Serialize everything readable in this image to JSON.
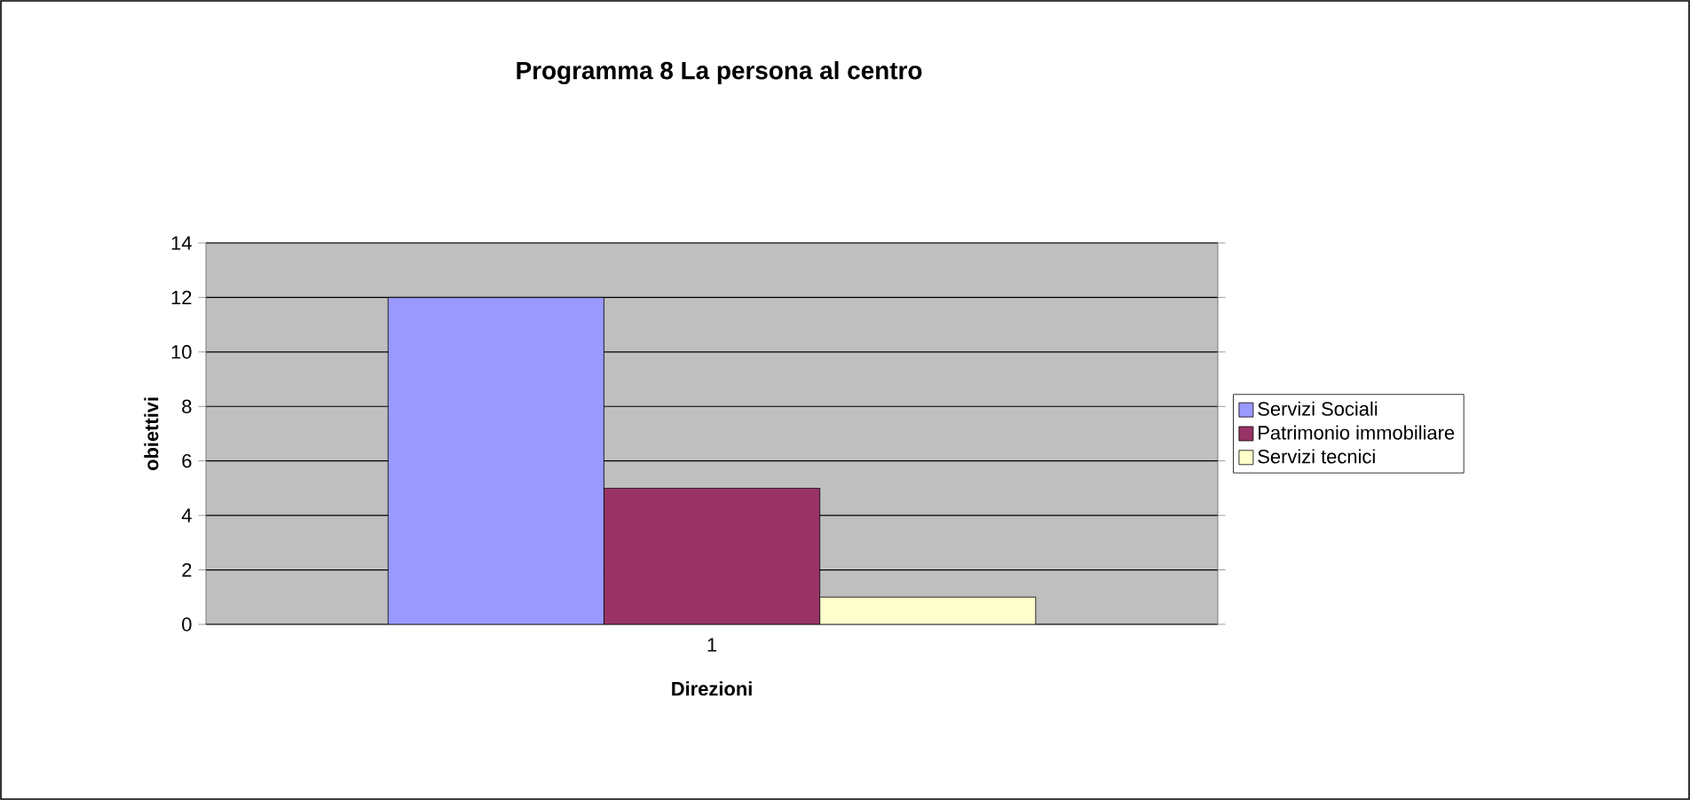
{
  "chart_data": {
    "type": "bar",
    "title": "Programma 8 La persona al centro",
    "xlabel": "Direzioni",
    "ylabel": "obiettivi",
    "categories": [
      "1"
    ],
    "series": [
      {
        "name": "Servizi Sociali",
        "color": "#9999ff",
        "values": [
          12
        ]
      },
      {
        "name": "Patrimonio immobiliare",
        "color": "#993366",
        "values": [
          5
        ]
      },
      {
        "name": "Servizi tecnici",
        "color": "#ffffcc",
        "values": [
          1
        ]
      }
    ],
    "ylim": [
      0,
      14
    ],
    "yticks": [
      0,
      2,
      4,
      6,
      8,
      10,
      12,
      14
    ],
    "grid": "y",
    "legend": "right"
  }
}
